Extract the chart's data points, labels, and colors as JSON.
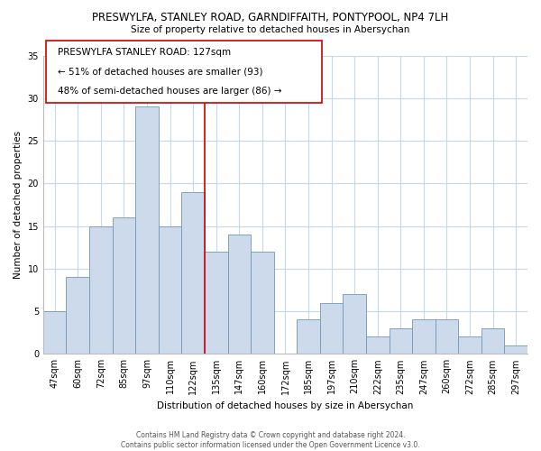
{
  "title": "PRESWYLFA, STANLEY ROAD, GARNDIFFAITH, PONTYPOOL, NP4 7LH",
  "subtitle": "Size of property relative to detached houses in Abersychan",
  "xlabel": "Distribution of detached houses by size in Abersychan",
  "ylabel": "Number of detached properties",
  "bar_labels": [
    "47sqm",
    "60sqm",
    "72sqm",
    "85sqm",
    "97sqm",
    "110sqm",
    "122sqm",
    "135sqm",
    "147sqm",
    "160sqm",
    "172sqm",
    "185sqm",
    "197sqm",
    "210sqm",
    "222sqm",
    "235sqm",
    "247sqm",
    "260sqm",
    "272sqm",
    "285sqm",
    "297sqm"
  ],
  "bar_values": [
    5,
    9,
    15,
    16,
    29,
    15,
    19,
    12,
    14,
    12,
    0,
    4,
    6,
    7,
    2,
    3,
    4,
    4,
    2,
    3,
    1
  ],
  "bar_color": "#cddaeb",
  "bar_edge_color": "#7098bb",
  "vline_x": 6.5,
  "vline_color": "#cc0000",
  "ylim": [
    0,
    35
  ],
  "yticks": [
    0,
    5,
    10,
    15,
    20,
    25,
    30,
    35
  ],
  "annotation_title": "PRESWYLFA STANLEY ROAD: 127sqm",
  "annotation_line1": "← 51% of detached houses are smaller (93)",
  "annotation_line2": "48% of semi-detached houses are larger (86) →",
  "footer1": "Contains HM Land Registry data © Crown copyright and database right 2024.",
  "footer2": "Contains public sector information licensed under the Open Government Licence v3.0.",
  "background_color": "#ffffff",
  "grid_color": "#c8d8e8",
  "title_fontsize": 8.5,
  "subtitle_fontsize": 7.5,
  "axis_label_fontsize": 7.5,
  "tick_fontsize": 7.0,
  "annotation_fontsize": 7.5,
  "footer_fontsize": 5.5
}
